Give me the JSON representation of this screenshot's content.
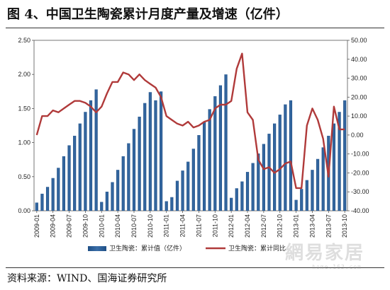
{
  "figure": {
    "title": "图 4、中国卫生陶瓷累计月度产量及增速（亿件）",
    "source": "资料来源：WIND、国海证券研究所",
    "watermark": "網易家居",
    "watermark_sub": "home.163.com"
  },
  "colors": {
    "bar": "#3a6ea8",
    "bar_dark": "#1f4f86",
    "line": "#b03a3a",
    "axis": "#555555"
  },
  "chart_data": {
    "type": "bar",
    "title": "",
    "categories": [
      "2009-01",
      "2009-02",
      "2009-03",
      "2009-04",
      "2009-05",
      "2009-06",
      "2009-07",
      "2009-08",
      "2009-09",
      "2009-10",
      "2009-11",
      "2009-12",
      "2010-01",
      "2010-02",
      "2010-03",
      "2010-04",
      "2010-05",
      "2010-06",
      "2010-07",
      "2010-08",
      "2010-09",
      "2010-10",
      "2010-11",
      "2010-12",
      "2011-01",
      "2011-02",
      "2011-03",
      "2011-04",
      "2011-05",
      "2011-06",
      "2011-07",
      "2011-08",
      "2011-09",
      "2011-10",
      "2011-11",
      "2011-12",
      "2012-01",
      "2012-02",
      "2012-03",
      "2012-04",
      "2012-05",
      "2012-06",
      "2012-07",
      "2012-08",
      "2012-09",
      "2012-10",
      "2012-11",
      "2012-12",
      "2013-01",
      "2013-02",
      "2013-03",
      "2013-04",
      "2013-05",
      "2013-06",
      "2013-07",
      "2013-08",
      "2013-09",
      "2013-10"
    ],
    "x_tick_labels": [
      "2009-01",
      "2009-04",
      "2009-07",
      "2009-10",
      "2010-01",
      "2010-04",
      "2010-07",
      "2010-10",
      "2011-01",
      "2011-04",
      "2011-07",
      "2011-10",
      "2012-01",
      "2012-04",
      "2012-07",
      "2012-10",
      "2013-01",
      "2013-04",
      "2013-07",
      "2013-10"
    ],
    "series": [
      {
        "name": "卫生陶瓷：累计值（亿件）",
        "type": "bar",
        "axis": "left",
        "values": [
          0.12,
          0.25,
          0.35,
          0.48,
          0.63,
          0.8,
          0.96,
          1.1,
          1.28,
          1.45,
          1.62,
          1.78,
          0.13,
          0.28,
          0.42,
          0.6,
          0.8,
          0.99,
          1.2,
          1.38,
          1.58,
          1.74,
          1.62,
          1.75,
          0.14,
          0.2,
          0.44,
          0.59,
          0.72,
          0.91,
          1.11,
          1.3,
          1.49,
          1.68,
          1.84,
          2.0,
          0.19,
          0.33,
          0.43,
          0.57,
          0.7,
          0.84,
          0.98,
          1.13,
          1.28,
          1.41,
          1.56,
          1.62,
          0.16,
          0.32,
          0.45,
          0.6,
          0.76,
          0.93,
          1.1,
          1.28,
          1.45,
          1.62
        ]
      },
      {
        "name": "卫生陶瓷：累计同比",
        "type": "line",
        "axis": "right",
        "values": [
          0,
          10,
          10,
          13,
          12,
          14,
          16,
          18,
          18,
          17,
          15,
          12,
          15,
          22,
          28,
          28,
          33,
          32,
          29,
          32,
          29,
          27,
          25,
          20,
          10,
          8,
          6,
          5,
          7,
          4,
          5,
          7,
          8,
          14,
          16,
          16,
          18,
          35,
          43,
          12,
          8,
          -13,
          -18,
          -17,
          -20,
          -18,
          -15,
          -14,
          -28,
          -28,
          5,
          14,
          8,
          -2,
          -22,
          15,
          3,
          3
        ]
      }
    ],
    "y_left": {
      "min": 0,
      "max": 2.5,
      "ticks": [
        "0.00",
        "0.50",
        "1.00",
        "1.50",
        "2.00",
        "2.50"
      ]
    },
    "y_right": {
      "min": -40,
      "max": 50,
      "ticks": [
        "-40.00",
        "-30.00",
        "-20.00",
        "-10.00",
        "0.00",
        "10.00",
        "20.00",
        "30.00",
        "40.00",
        "50.00"
      ]
    },
    "legend": {
      "placement": "bottom",
      "entries": [
        "卫生陶瓷：累计值（亿件）",
        "卫生陶瓷：累计同比"
      ]
    },
    "grid": false
  }
}
